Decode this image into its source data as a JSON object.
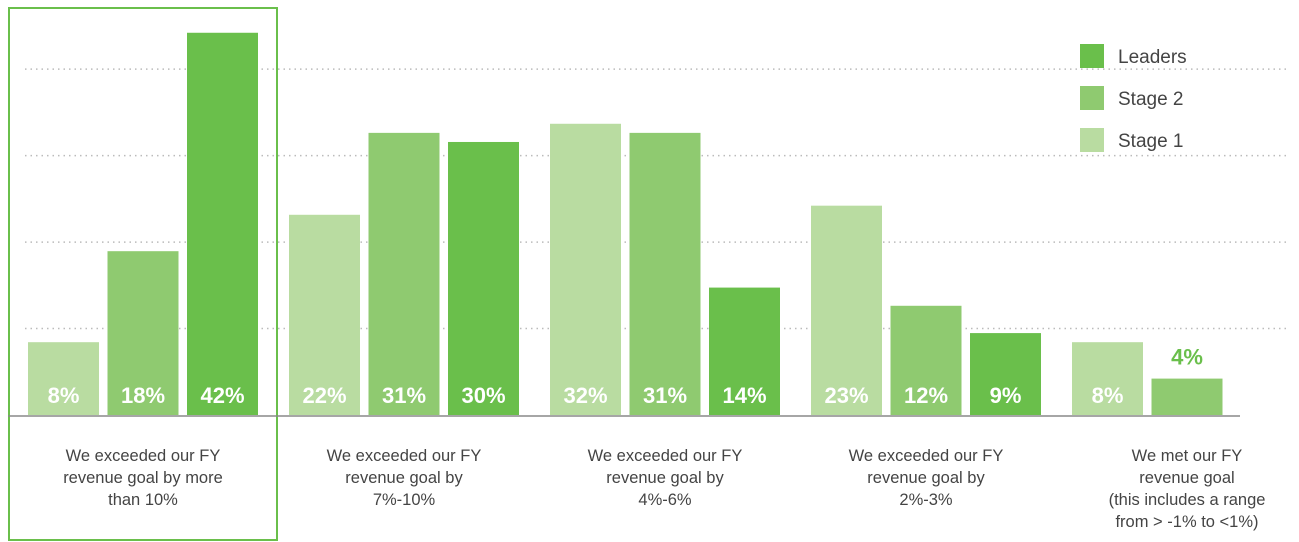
{
  "chart_data": {
    "type": "bar",
    "categories": [
      "We exceeded our FY\nrevenue goal by more\nthan 10%",
      "We exceeded our FY\nrevenue goal by\n7%-10%",
      "We exceeded our FY\nrevenue goal by\n4%-6%",
      "We exceeded our FY\nrevenue goal by\n2%-3%",
      "We met our FY\nrevenue goal\n(this includes a range\nfrom > -1% to <1%)"
    ],
    "series": [
      {
        "name": "Stage 1",
        "color": "#b9dca1",
        "values": [
          8,
          22,
          32,
          23,
          8
        ],
        "value_labels": [
          "8%",
          "22%",
          "32%",
          "23%",
          "8%"
        ]
      },
      {
        "name": "Stage 2",
        "color": "#8fca70",
        "values": [
          18,
          31,
          31,
          12,
          4
        ],
        "value_labels": [
          "18%",
          "31%",
          "31%",
          "12%",
          "4%"
        ]
      },
      {
        "name": "Leaders",
        "color": "#6abf4b",
        "values": [
          42,
          30,
          14,
          9,
          null
        ],
        "value_labels": [
          "42%",
          "30%",
          "14%",
          "9%",
          null
        ]
      }
    ],
    "ylim": [
      0,
      45.6
    ],
    "yticks": [
      9.5,
      19,
      28.5,
      38
    ],
    "grid": true
  }
}
